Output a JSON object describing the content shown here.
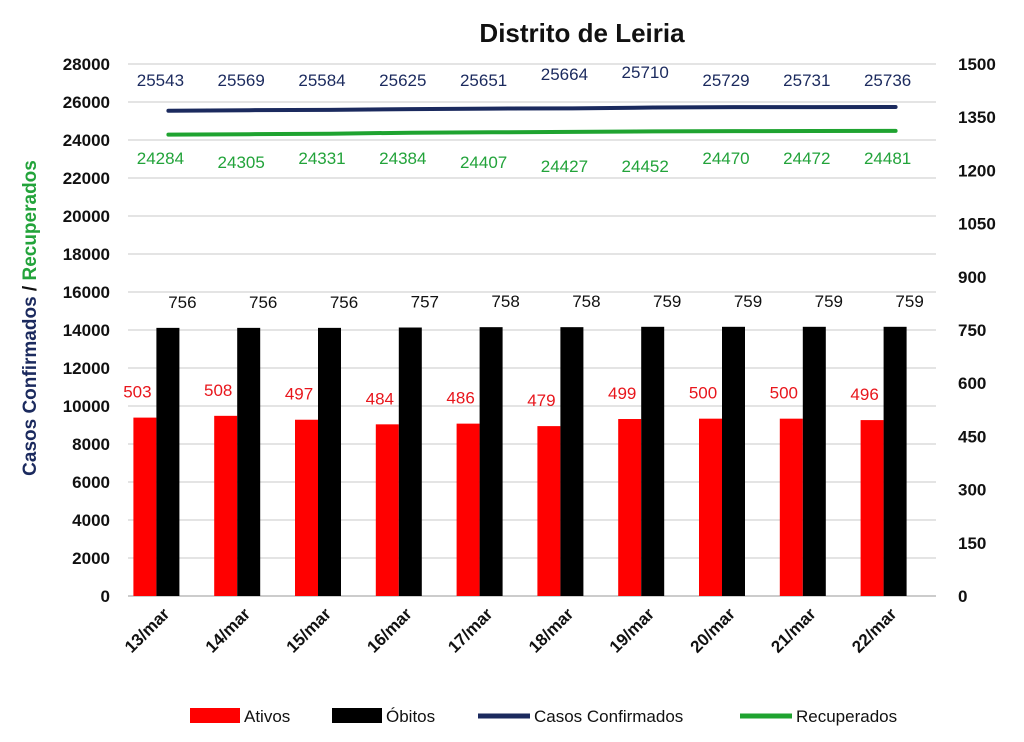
{
  "chart_data": {
    "type": "bar",
    "title": "Distrito de Leiria",
    "ylabel_parts": [
      "Casos Confirmados",
      " / ",
      "Recuperados"
    ],
    "categories": [
      "13/mar",
      "14/mar",
      "15/mar",
      "16/mar",
      "17/mar",
      "18/mar",
      "19/mar",
      "20/mar",
      "21/mar",
      "22/mar"
    ],
    "y_left": {
      "min": 0,
      "max": 28000,
      "step": 2000
    },
    "y_right": {
      "min": 0,
      "max": 1500,
      "step": 150
    },
    "grid": true,
    "legend_position": "bottom",
    "series": [
      {
        "name": "Ativos",
        "kind": "bar",
        "axis": "right",
        "color": "#ff0000",
        "label_color": "#e8161c",
        "values": [
          503,
          508,
          497,
          484,
          486,
          479,
          499,
          500,
          500,
          496
        ]
      },
      {
        "name": "Óbitos",
        "kind": "bar",
        "axis": "right",
        "color": "#000000",
        "label_color": "#111111",
        "values": [
          756,
          756,
          756,
          757,
          758,
          758,
          759,
          759,
          759,
          759
        ]
      },
      {
        "name": "Casos Confirmados",
        "kind": "line",
        "axis": "left",
        "color": "#1b2a5e",
        "label_color": "#1b2a5e",
        "values": [
          25543,
          25569,
          25584,
          25625,
          25651,
          25664,
          25710,
          25729,
          25731,
          25736
        ]
      },
      {
        "name": "Recuperados",
        "kind": "line",
        "axis": "left",
        "color": "#1fa330",
        "label_color": "#22a33a",
        "values": [
          24284,
          24305,
          24331,
          24384,
          24407,
          24427,
          24452,
          24470,
          24472,
          24481
        ]
      }
    ]
  }
}
